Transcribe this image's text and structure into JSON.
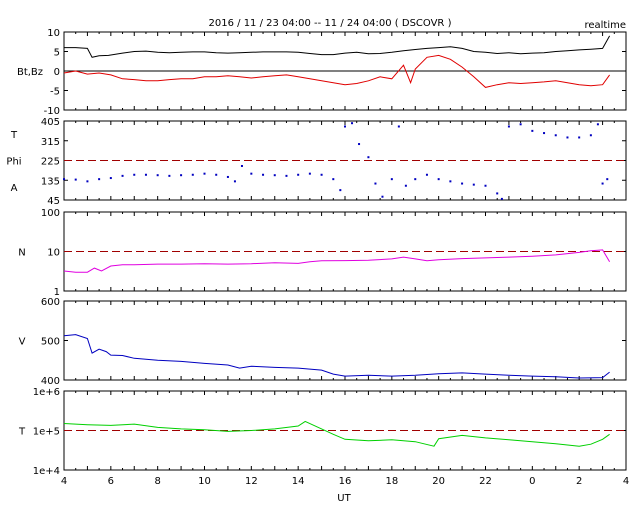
{
  "header": {
    "title": "2016 / 11 / 23  04:00 -- 11 / 24  04:00 ( DSCOVR )",
    "tag": "realtime"
  },
  "chart_data": [
    {
      "type": "line",
      "panel": "magnetic-field",
      "ylabel": "Bt,Bz",
      "yticks": [
        "10",
        "5",
        "0",
        "-5",
        "-10"
      ],
      "ylim": [
        -10,
        10
      ],
      "zero_line": 0,
      "series": [
        {
          "color": "#000000",
          "points": [
            [
              4,
              6.0
            ],
            [
              4.5,
              6.0
            ],
            [
              5.0,
              5.8
            ],
            [
              5.2,
              3.5
            ],
            [
              5.5,
              3.9
            ],
            [
              5.9,
              4.0
            ],
            [
              6.5,
              4.6
            ],
            [
              7,
              5.0
            ],
            [
              7.5,
              5.1
            ],
            [
              8,
              4.8
            ],
            [
              8.5,
              4.7
            ],
            [
              9,
              4.8
            ],
            [
              9.5,
              4.9
            ],
            [
              10,
              4.9
            ],
            [
              10.5,
              4.7
            ],
            [
              11,
              4.6
            ],
            [
              11.5,
              4.7
            ],
            [
              12,
              4.8
            ],
            [
              12.5,
              4.9
            ],
            [
              13,
              4.9
            ],
            [
              13.5,
              4.9
            ],
            [
              14,
              4.8
            ],
            [
              14.5,
              4.5
            ],
            [
              15,
              4.2
            ],
            [
              15.5,
              4.2
            ],
            [
              16,
              4.6
            ],
            [
              16.5,
              4.8
            ],
            [
              17,
              4.4
            ],
            [
              17.5,
              4.5
            ],
            [
              18,
              4.8
            ],
            [
              18.5,
              5.2
            ],
            [
              19,
              5.5
            ],
            [
              19.5,
              5.8
            ],
            [
              20,
              6.0
            ],
            [
              20.5,
              6.2
            ],
            [
              21,
              5.8
            ],
            [
              21.5,
              5.0
            ],
            [
              22,
              4.8
            ],
            [
              22.5,
              4.5
            ],
            [
              23,
              4.7
            ],
            [
              23.5,
              4.4
            ],
            [
              24,
              4.6
            ],
            [
              24.5,
              4.7
            ],
            [
              25,
              5.0
            ],
            [
              25.5,
              5.2
            ],
            [
              26,
              5.4
            ],
            [
              26.5,
              5.6
            ],
            [
              27,
              5.8
            ],
            [
              27.3,
              9.0
            ]
          ]
        },
        {
          "color": "#e00000",
          "points": [
            [
              4,
              -0.5
            ],
            [
              4.5,
              0.0
            ],
            [
              5,
              -0.8
            ],
            [
              5.5,
              -0.5
            ],
            [
              6,
              -1.0
            ],
            [
              6.5,
              -2.0
            ],
            [
              7,
              -2.2
            ],
            [
              7.5,
              -2.5
            ],
            [
              8,
              -2.5
            ],
            [
              8.5,
              -2.2
            ],
            [
              9,
              -2.0
            ],
            [
              9.5,
              -2.0
            ],
            [
              10,
              -1.5
            ],
            [
              10.5,
              -1.5
            ],
            [
              11,
              -1.2
            ],
            [
              11.5,
              -1.5
            ],
            [
              12,
              -1.8
            ],
            [
              12.5,
              -1.5
            ],
            [
              13,
              -1.2
            ],
            [
              13.5,
              -1.0
            ],
            [
              14,
              -1.5
            ],
            [
              14.5,
              -2.0
            ],
            [
              15,
              -2.5
            ],
            [
              15.5,
              -3.0
            ],
            [
              16,
              -3.5
            ],
            [
              16.5,
              -3.2
            ],
            [
              17,
              -2.5
            ],
            [
              17.5,
              -1.5
            ],
            [
              18,
              -2.0
            ],
            [
              18.5,
              1.5
            ],
            [
              18.8,
              -3.0
            ],
            [
              19,
              0.5
            ],
            [
              19.5,
              3.5
            ],
            [
              20,
              4.0
            ],
            [
              20.5,
              3.0
            ],
            [
              21,
              1.0
            ],
            [
              21.5,
              -1.5
            ],
            [
              22,
              -4.2
            ],
            [
              22.5,
              -3.5
            ],
            [
              23,
              -3.0
            ],
            [
              23.5,
              -3.2
            ],
            [
              24,
              -3.0
            ],
            [
              24.5,
              -2.8
            ],
            [
              25,
              -2.5
            ],
            [
              25.5,
              -3.0
            ],
            [
              26,
              -3.5
            ],
            [
              26.5,
              -3.8
            ],
            [
              27,
              -3.5
            ],
            [
              27.3,
              -1.0
            ]
          ]
        }
      ]
    },
    {
      "type": "scatter",
      "panel": "angles",
      "ylabel_lines": [
        "T",
        "Phi",
        "A"
      ],
      "yticks": [
        "405",
        "315",
        "225",
        "135",
        "45"
      ],
      "ylim": [
        45,
        405
      ],
      "reference_line": 225,
      "series": [
        {
          "color": "#0000c0",
          "points": [
            [
              4,
              140
            ],
            [
              4.5,
              138
            ],
            [
              5,
              130
            ],
            [
              5.5,
              140
            ],
            [
              6,
              145
            ],
            [
              6.5,
              155
            ],
            [
              7,
              160
            ],
            [
              7.5,
              160
            ],
            [
              8,
              158
            ],
            [
              8.5,
              155
            ],
            [
              9,
              158
            ],
            [
              9.5,
              160
            ],
            [
              10,
              165
            ],
            [
              10.5,
              160
            ],
            [
              11,
              150
            ],
            [
              11.3,
              130
            ],
            [
              11.6,
              200
            ],
            [
              12,
              165
            ],
            [
              12.5,
              160
            ],
            [
              13,
              158
            ],
            [
              13.5,
              155
            ],
            [
              14,
              160
            ],
            [
              14.5,
              165
            ],
            [
              15,
              160
            ],
            [
              15.5,
              140
            ],
            [
              15.8,
              90
            ],
            [
              16,
              380
            ],
            [
              16.3,
              395
            ],
            [
              16.6,
              300
            ],
            [
              17,
              240
            ],
            [
              17.3,
              120
            ],
            [
              17.6,
              60
            ],
            [
              18,
              140
            ],
            [
              18.3,
              380
            ],
            [
              18.6,
              110
            ],
            [
              19,
              140
            ],
            [
              19.5,
              160
            ],
            [
              20,
              140
            ],
            [
              20.5,
              130
            ],
            [
              21,
              120
            ],
            [
              21.5,
              115
            ],
            [
              22,
              110
            ],
            [
              22.5,
              75
            ],
            [
              22.7,
              50
            ],
            [
              23,
              380
            ],
            [
              23.5,
              390
            ],
            [
              24,
              360
            ],
            [
              24.5,
              350
            ],
            [
              25,
              340
            ],
            [
              25.5,
              330
            ],
            [
              26,
              330
            ],
            [
              26.5,
              340
            ],
            [
              26.8,
              390
            ],
            [
              27,
              120
            ],
            [
              27.2,
              140
            ]
          ]
        }
      ]
    },
    {
      "type": "line",
      "panel": "density",
      "ylabel": "N",
      "yscale": "log",
      "yticks": [
        "100",
        "10",
        "1"
      ],
      "ylim": [
        1,
        100
      ],
      "reference_line": 10,
      "series": [
        {
          "color": "#e000e0",
          "points": [
            [
              4,
              3.2
            ],
            [
              4.5,
              3.0
            ],
            [
              5,
              3.0
            ],
            [
              5.3,
              3.8
            ],
            [
              5.6,
              3.2
            ],
            [
              6,
              4.3
            ],
            [
              6.5,
              4.6
            ],
            [
              7,
              4.6
            ],
            [
              8,
              4.8
            ],
            [
              9,
              4.8
            ],
            [
              10,
              4.9
            ],
            [
              11,
              4.8
            ],
            [
              12,
              4.9
            ],
            [
              13,
              5.2
            ],
            [
              14,
              5.0
            ],
            [
              14.5,
              5.5
            ],
            [
              15,
              5.8
            ],
            [
              16,
              5.9
            ],
            [
              17,
              6.0
            ],
            [
              18,
              6.5
            ],
            [
              18.5,
              7.2
            ],
            [
              19,
              6.5
            ],
            [
              19.5,
              5.8
            ],
            [
              20,
              6.2
            ],
            [
              21,
              6.6
            ],
            [
              22,
              6.9
            ],
            [
              23,
              7.2
            ],
            [
              24,
              7.6
            ],
            [
              25,
              8.2
            ],
            [
              26,
              9.5
            ],
            [
              26.5,
              10.5
            ],
            [
              27,
              11.0
            ],
            [
              27.3,
              5.5
            ]
          ]
        }
      ]
    },
    {
      "type": "line",
      "panel": "speed",
      "ylabel": "V",
      "yticks": [
        "600",
        "500",
        "400"
      ],
      "ylim": [
        400,
        600
      ],
      "series": [
        {
          "color": "#0000c0",
          "points": [
            [
              4,
              512
            ],
            [
              4.5,
              515
            ],
            [
              5,
              505
            ],
            [
              5.2,
              468
            ],
            [
              5.5,
              478
            ],
            [
              5.8,
              472
            ],
            [
              6,
              463
            ],
            [
              6.5,
              462
            ],
            [
              7,
              455
            ],
            [
              8,
              450
            ],
            [
              9,
              447
            ],
            [
              10,
              442
            ],
            [
              11,
              438
            ],
            [
              11.5,
              430
            ],
            [
              12,
              435
            ],
            [
              13,
              432
            ],
            [
              14,
              430
            ],
            [
              15,
              425
            ],
            [
              15.5,
              415
            ],
            [
              16,
              410
            ],
            [
              17,
              412
            ],
            [
              18,
              410
            ],
            [
              19,
              412
            ],
            [
              20,
              416
            ],
            [
              21,
              418
            ],
            [
              22,
              415
            ],
            [
              23,
              412
            ],
            [
              24,
              410
            ],
            [
              25,
              408
            ],
            [
              26,
              405
            ],
            [
              27,
              406
            ],
            [
              27.3,
              420
            ]
          ]
        }
      ]
    },
    {
      "type": "line",
      "panel": "temperature",
      "ylabel": "T",
      "yscale": "log",
      "yticks": [
        "1e+6",
        "1e+5",
        "1e+4"
      ],
      "ylim": [
        10000,
        1000000
      ],
      "reference_line": 100000,
      "series": [
        {
          "color": "#00d000",
          "points": [
            [
              4,
              150000
            ],
            [
              5,
              140000
            ],
            [
              6,
              135000
            ],
            [
              7,
              145000
            ],
            [
              8,
              120000
            ],
            [
              9,
              110000
            ],
            [
              10,
              105000
            ],
            [
              11,
              95000
            ],
            [
              12,
              100000
            ],
            [
              13,
              110000
            ],
            [
              14,
              130000
            ],
            [
              14.3,
              170000
            ],
            [
              15,
              110000
            ],
            [
              15.5,
              80000
            ],
            [
              16,
              60000
            ],
            [
              17,
              55000
            ],
            [
              18,
              58000
            ],
            [
              19,
              52000
            ],
            [
              19.8,
              40000
            ],
            [
              20,
              62000
            ],
            [
              21,
              75000
            ],
            [
              22,
              65000
            ],
            [
              23,
              58000
            ],
            [
              24,
              52000
            ],
            [
              25,
              46000
            ],
            [
              26,
              40000
            ],
            [
              26.5,
              45000
            ],
            [
              27,
              60000
            ],
            [
              27.3,
              80000
            ]
          ]
        }
      ]
    }
  ],
  "x_axis": {
    "label": "UT",
    "ticks": [
      "4",
      "6",
      "8",
      "10",
      "12",
      "14",
      "16",
      "18",
      "20",
      "22",
      "0",
      "2",
      "4"
    ],
    "range": [
      4,
      28
    ]
  }
}
